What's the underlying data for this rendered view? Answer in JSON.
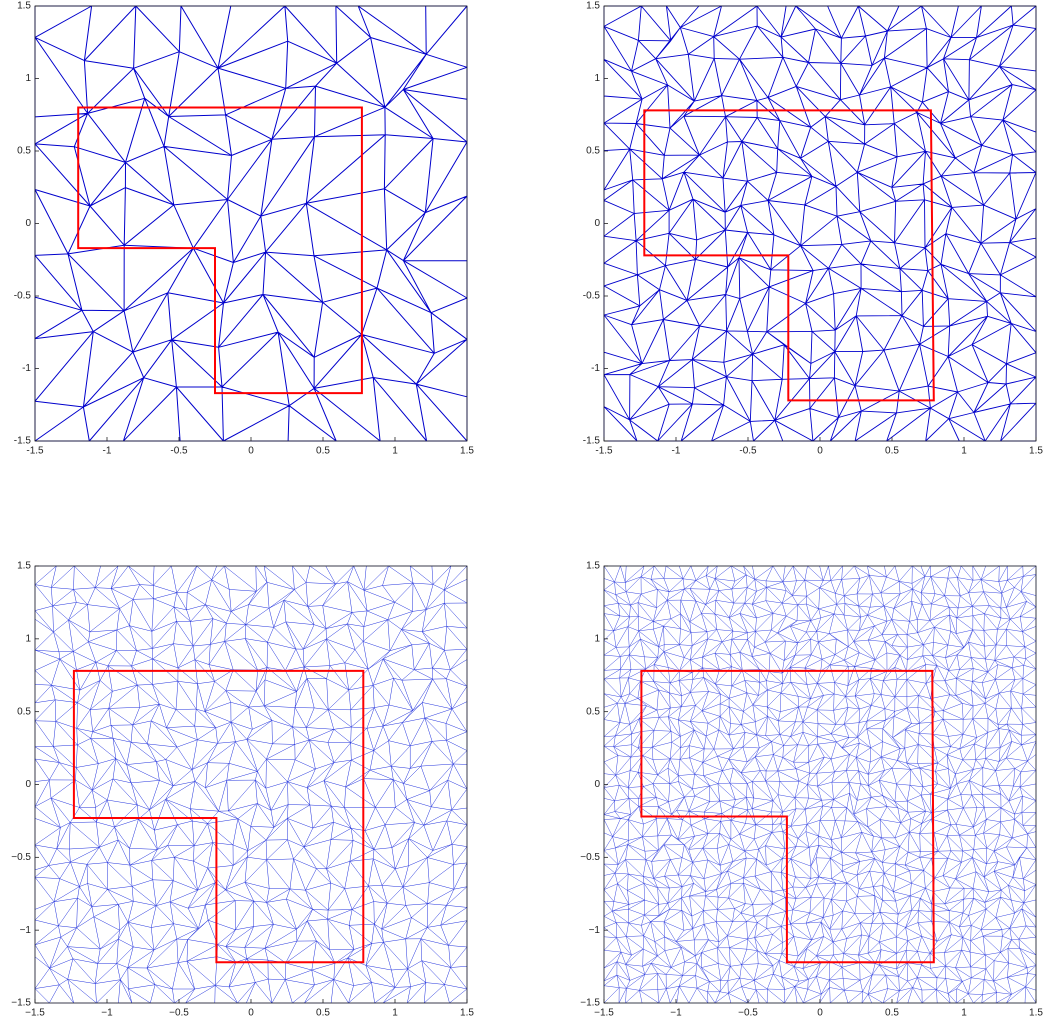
{
  "chart_data": [
    {
      "type": "mesh",
      "color": "#0000cc",
      "polygon_color": "#ff0000",
      "xlim": [
        -1.5,
        1.5
      ],
      "ylim": [
        -1.5,
        1.5
      ],
      "xticks": [
        -1.5,
        -1,
        -0.5,
        0,
        0.5,
        1,
        1.5
      ],
      "yticks": [
        -1.5,
        -1,
        -0.5,
        0,
        0.5,
        1,
        1.5
      ],
      "polygon": {
        "x": [
          -1.2,
          0.77,
          0.77,
          -0.25,
          -0.25,
          -1.2
        ],
        "y": [
          0.8,
          0.8,
          -1.17,
          -1.17,
          -0.17,
          -0.17
        ]
      }
    },
    {
      "type": "mesh",
      "color": "#0000cc",
      "polygon_color": "#ff0000",
      "xlim": [
        -1.5,
        1.5
      ],
      "ylim": [
        -1.5,
        1.5
      ],
      "xticks": [
        -1.5,
        -1,
        -0.5,
        0,
        0.5,
        1,
        1.5
      ],
      "yticks": [
        -1.5,
        -1,
        -0.5,
        0,
        0.5,
        1,
        1.5
      ],
      "polygon": {
        "x": [
          -1.22,
          0.77,
          0.79,
          -0.22,
          -0.22,
          -1.22
        ],
        "y": [
          0.78,
          0.78,
          -1.22,
          -1.22,
          -0.22,
          -0.22
        ]
      }
    },
    {
      "type": "mesh",
      "color": "#2233dd",
      "polygon_color": "#ff0000",
      "xlim": [
        -1.5,
        1.5
      ],
      "ylim": [
        -1.5,
        1.5
      ],
      "xticks": [
        {
          "value": -1.5,
          "label": "−1.5"
        },
        {
          "value": -1,
          "label": "−1"
        },
        {
          "value": -0.5,
          "label": "−0.5"
        },
        0,
        0.5,
        1,
        1.5
      ],
      "yticks": [
        {
          "value": -1.5,
          "label": "−1.5"
        },
        {
          "value": -1,
          "label": "−1"
        },
        {
          "value": -0.5,
          "label": "−0.5"
        },
        0,
        0.5,
        1,
        1.5
      ],
      "polygon": {
        "x": [
          -1.23,
          0.78,
          0.78,
          -0.24,
          -0.24,
          -1.23
        ],
        "y": [
          0.78,
          0.78,
          -1.22,
          -1.22,
          -0.23,
          -0.23
        ]
      }
    },
    {
      "type": "mesh",
      "color": "#2233dd",
      "polygon_color": "#ff0000",
      "xlim": [
        -1.5,
        1.5
      ],
      "ylim": [
        -1.5,
        1.5
      ],
      "xticks": [
        {
          "value": -1.5,
          "label": "−1.5"
        },
        {
          "value": -1,
          "label": "−1"
        },
        {
          "value": -0.5,
          "label": "−0.5"
        },
        0,
        0.5,
        1,
        1.5
      ],
      "yticks": [
        {
          "value": -1.5,
          "label": "−1.5"
        },
        {
          "value": -1,
          "label": "−1"
        },
        {
          "value": -0.5,
          "label": "−0.5"
        },
        0,
        0.5,
        1,
        1.5
      ],
      "polygon": {
        "x": [
          -1.24,
          0.78,
          0.79,
          -0.23,
          -0.23,
          -1.24
        ],
        "y": [
          0.78,
          0.78,
          -1.22,
          -1.22,
          -0.22,
          -0.22
        ]
      }
    }
  ]
}
